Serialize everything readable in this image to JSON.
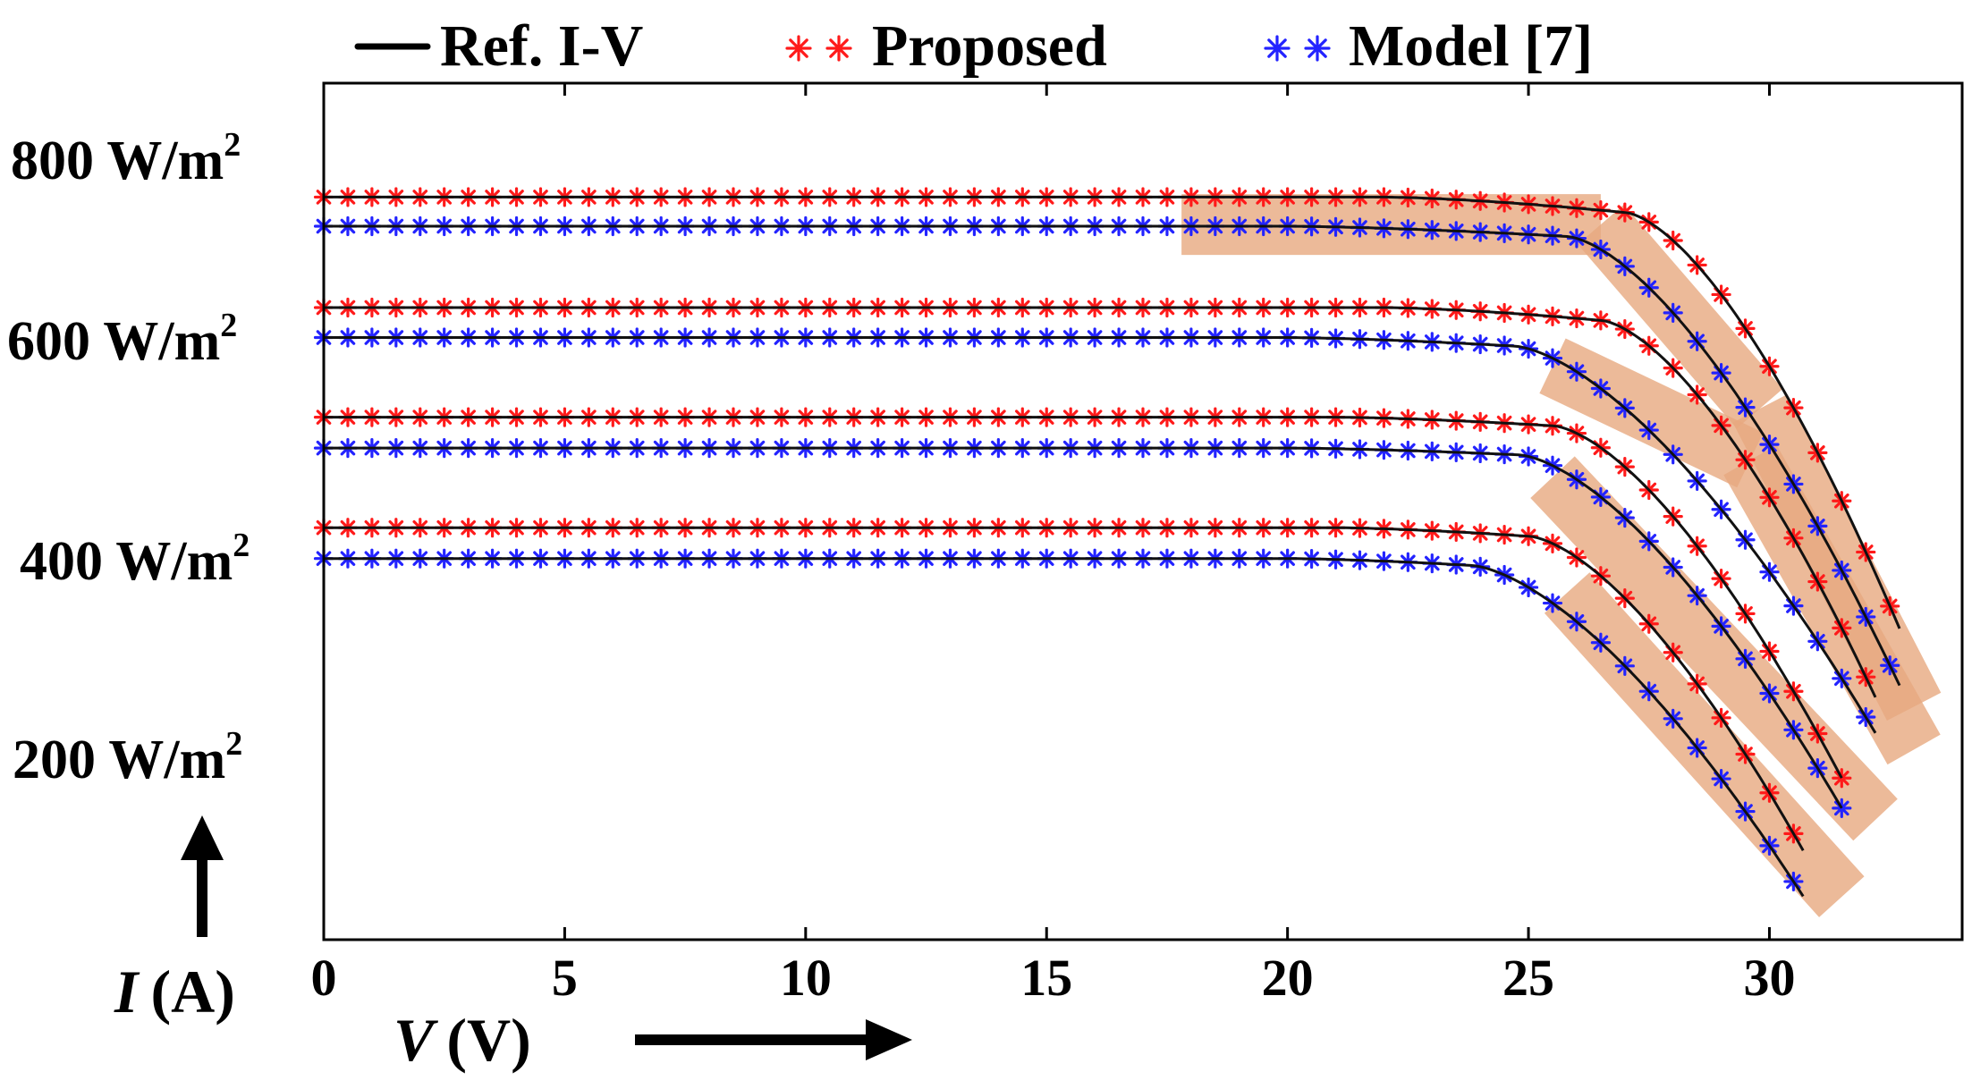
{
  "chart_data": {
    "type": "line",
    "legend": {
      "placement": "top",
      "entries": [
        {
          "label": "Ref. I-V",
          "marker": "line",
          "color": "#000000"
        },
        {
          "label": "Proposed",
          "marker": "asterisk",
          "color": "#ff1a1a"
        },
        {
          "label": "Model [7]",
          "marker": "asterisk",
          "color": "#2323ff"
        }
      ]
    },
    "xlabel": {
      "var": "V",
      "unit": "(V)"
    },
    "ylabel": {
      "var": "I",
      "unit": "(A)"
    },
    "xlim": [
      0,
      34
    ],
    "x_ticks": [
      "0",
      "5",
      "10",
      "15",
      "20",
      "25",
      "30"
    ],
    "y_ticks_shown": false,
    "grid": false,
    "highlight_color": "#e7a97f",
    "irradiance_labels": [
      {
        "text": "800 W/m",
        "sup": "2"
      },
      {
        "text": "600 W/m",
        "sup": "2"
      },
      {
        "text": "400 W/m",
        "sup": "2"
      },
      {
        "text": "200 W/m",
        "sup": "2"
      }
    ],
    "curve_groups": [
      {
        "irradiance": "800 W/m2",
        "series": [
          {
            "name": "Proposed",
            "isc": 0.867,
            "knee_v": 27.0,
            "voc": 32.8,
            "voc_current": 0.35,
            "start_sag": 22.0,
            "sag": 0.018
          },
          {
            "name": "Model [7]",
            "isc": 0.833,
            "knee_v": 25.8,
            "voc": 32.8,
            "voc_current": 0.285,
            "start_sag": 20.0,
            "sag": 0.012
          }
        ]
      },
      {
        "irradiance": "600 W/m2",
        "series": [
          {
            "name": "Proposed",
            "isc": 0.738,
            "knee_v": 26.5,
            "voc": 32.3,
            "voc_current": 0.271,
            "start_sag": 22.0,
            "sag": 0.015
          },
          {
            "name": "Model [7]",
            "isc": 0.703,
            "knee_v": 24.7,
            "voc": 32.3,
            "voc_current": 0.232,
            "start_sag": 20.0,
            "sag": 0.01
          }
        ]
      },
      {
        "irradiance": "400 W/m2",
        "series": [
          {
            "name": "Proposed",
            "isc": 0.61,
            "knee_v": 25.5,
            "voc": 31.6,
            "voc_current": 0.178,
            "start_sag": 21.0,
            "sag": 0.01
          },
          {
            "name": "Model [7]",
            "isc": 0.574,
            "knee_v": 24.8,
            "voc": 31.6,
            "voc_current": 0.144,
            "start_sag": 20.0,
            "sag": 0.008
          }
        ]
      },
      {
        "irradiance": "200 W/m2",
        "series": [
          {
            "name": "Proposed",
            "isc": 0.481,
            "knee_v": 25.0,
            "voc": 30.8,
            "voc_current": 0.094,
            "start_sag": 21.0,
            "sag": 0.01
          },
          {
            "name": "Model [7]",
            "isc": 0.445,
            "knee_v": 23.8,
            "voc": 30.8,
            "voc_current": 0.042,
            "start_sag": 20.0,
            "sag": 0.008
          }
        ]
      }
    ],
    "annotations": [
      {
        "type": "highlight-band",
        "points": [
          [
            17.8,
            0.835
          ],
          [
            26.5,
            0.835
          ]
        ]
      },
      {
        "type": "highlight-band",
        "points": [
          [
            26.5,
            0.835
          ],
          [
            29.8,
            0.62
          ]
        ]
      },
      {
        "type": "highlight-band",
        "points": [
          [
            29.8,
            0.62
          ],
          [
            33.0,
            0.272
          ]
        ]
      },
      {
        "type": "highlight-band",
        "points": [
          [
            25.5,
            0.67
          ],
          [
            29.6,
            0.56
          ]
        ]
      },
      {
        "type": "highlight-band",
        "points": [
          [
            29.6,
            0.56
          ],
          [
            33.0,
            0.222
          ]
        ]
      },
      {
        "type": "highlight-band",
        "points": [
          [
            25.5,
            0.54
          ],
          [
            32.2,
            0.14
          ]
        ]
      },
      {
        "type": "highlight-band",
        "points": [
          [
            25.8,
            0.405
          ],
          [
            31.5,
            0.05
          ]
        ]
      }
    ]
  }
}
